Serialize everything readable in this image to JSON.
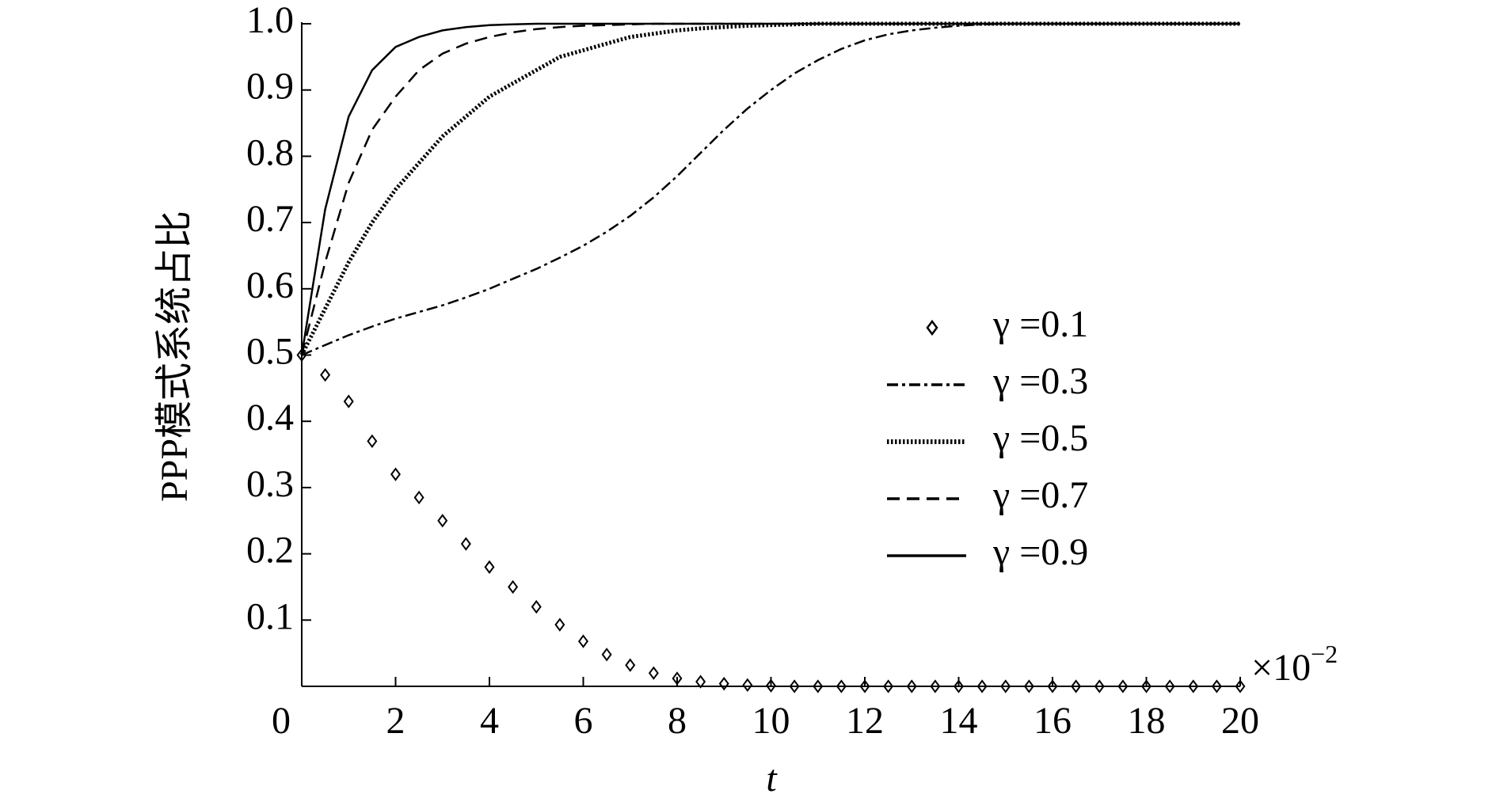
{
  "chart_data": {
    "type": "line",
    "y_label": "PPP模式系统占比",
    "x_label": "t",
    "x_multiplier": "×10",
    "x_multiplier_exponent": "−2",
    "x": [
      0,
      0.5,
      1,
      1.5,
      2,
      2.5,
      3,
      3.5,
      4,
      4.5,
      5,
      5.5,
      6,
      6.5,
      7,
      7.5,
      8,
      8.5,
      9,
      9.5,
      10,
      10.5,
      11,
      11.5,
      12,
      12.5,
      13,
      13.5,
      14,
      14.5,
      15,
      15.5,
      16,
      16.5,
      17,
      17.5,
      18,
      18.5,
      19,
      19.5,
      20
    ],
    "xlim": [
      0,
      20
    ],
    "xticks": [
      0,
      2,
      4,
      6,
      8,
      10,
      12,
      14,
      16,
      18,
      20
    ],
    "ylim": [
      0,
      1
    ],
    "yticks": [
      0.1,
      0.2,
      0.3,
      0.4,
      0.5,
      0.6,
      0.7,
      0.8,
      0.9,
      {
        "value": 1,
        "label": "1.0"
      }
    ],
    "legend": "right",
    "series": [
      {
        "name": "γ =0.1",
        "color": "#000000",
        "style": "marker",
        "marker": "diamond",
        "values": [
          0.5,
          0.47,
          0.43,
          0.37,
          0.32,
          0.285,
          0.25,
          0.215,
          0.18,
          0.15,
          0.12,
          0.093,
          0.068,
          0.048,
          0.032,
          0.02,
          0.012,
          0.007,
          0.004,
          0.002,
          0.001,
          0,
          0,
          0,
          0,
          0,
          0,
          0,
          0,
          0,
          0,
          0,
          0,
          0,
          0,
          0,
          0,
          0,
          0,
          0,
          0
        ]
      },
      {
        "name": "γ =0.3",
        "color": "#000000",
        "style": "dashdot",
        "values": [
          0.5,
          0.515,
          0.53,
          0.543,
          0.555,
          0.565,
          0.575,
          0.587,
          0.6,
          0.615,
          0.63,
          0.647,
          0.665,
          0.686,
          0.71,
          0.738,
          0.77,
          0.805,
          0.84,
          0.872,
          0.9,
          0.925,
          0.945,
          0.962,
          0.975,
          0.984,
          0.99,
          0.994,
          0.997,
          0.999,
          1,
          1,
          1,
          1,
          1,
          1,
          1,
          1,
          1,
          1,
          1
        ]
      },
      {
        "name": "γ =0.5",
        "color": "#000000",
        "style": "dotted",
        "values": [
          0.5,
          0.57,
          0.64,
          0.7,
          0.75,
          0.79,
          0.83,
          0.86,
          0.89,
          0.91,
          0.93,
          0.95,
          0.96,
          0.97,
          0.98,
          0.985,
          0.99,
          0.993,
          0.995,
          0.997,
          0.998,
          0.999,
          1,
          1,
          1,
          1,
          1,
          1,
          1,
          1,
          1,
          1,
          1,
          1,
          1,
          1,
          1,
          1,
          1,
          1,
          1
        ]
      },
      {
        "name": "γ =0.7",
        "color": "#000000",
        "style": "dashed",
        "values": [
          0.5,
          0.64,
          0.76,
          0.84,
          0.89,
          0.93,
          0.955,
          0.97,
          0.98,
          0.987,
          0.992,
          0.995,
          0.997,
          0.998,
          0.999,
          1,
          1,
          1,
          1,
          1,
          1,
          1,
          1,
          1,
          1,
          1,
          1,
          1,
          1,
          1,
          1,
          1,
          1,
          1,
          1,
          1,
          1,
          1,
          1,
          1,
          1
        ]
      },
      {
        "name": "γ =0.9",
        "color": "#000000",
        "style": "solid",
        "values": [
          0.5,
          0.72,
          0.86,
          0.93,
          0.965,
          0.98,
          0.99,
          0.995,
          0.998,
          0.999,
          1,
          1,
          1,
          1,
          1,
          1,
          1,
          1,
          1,
          1,
          1,
          1,
          1,
          1,
          1,
          1,
          1,
          1,
          1,
          1,
          1,
          1,
          1,
          1,
          1,
          1,
          1,
          1,
          1,
          1,
          1
        ]
      }
    ]
  }
}
